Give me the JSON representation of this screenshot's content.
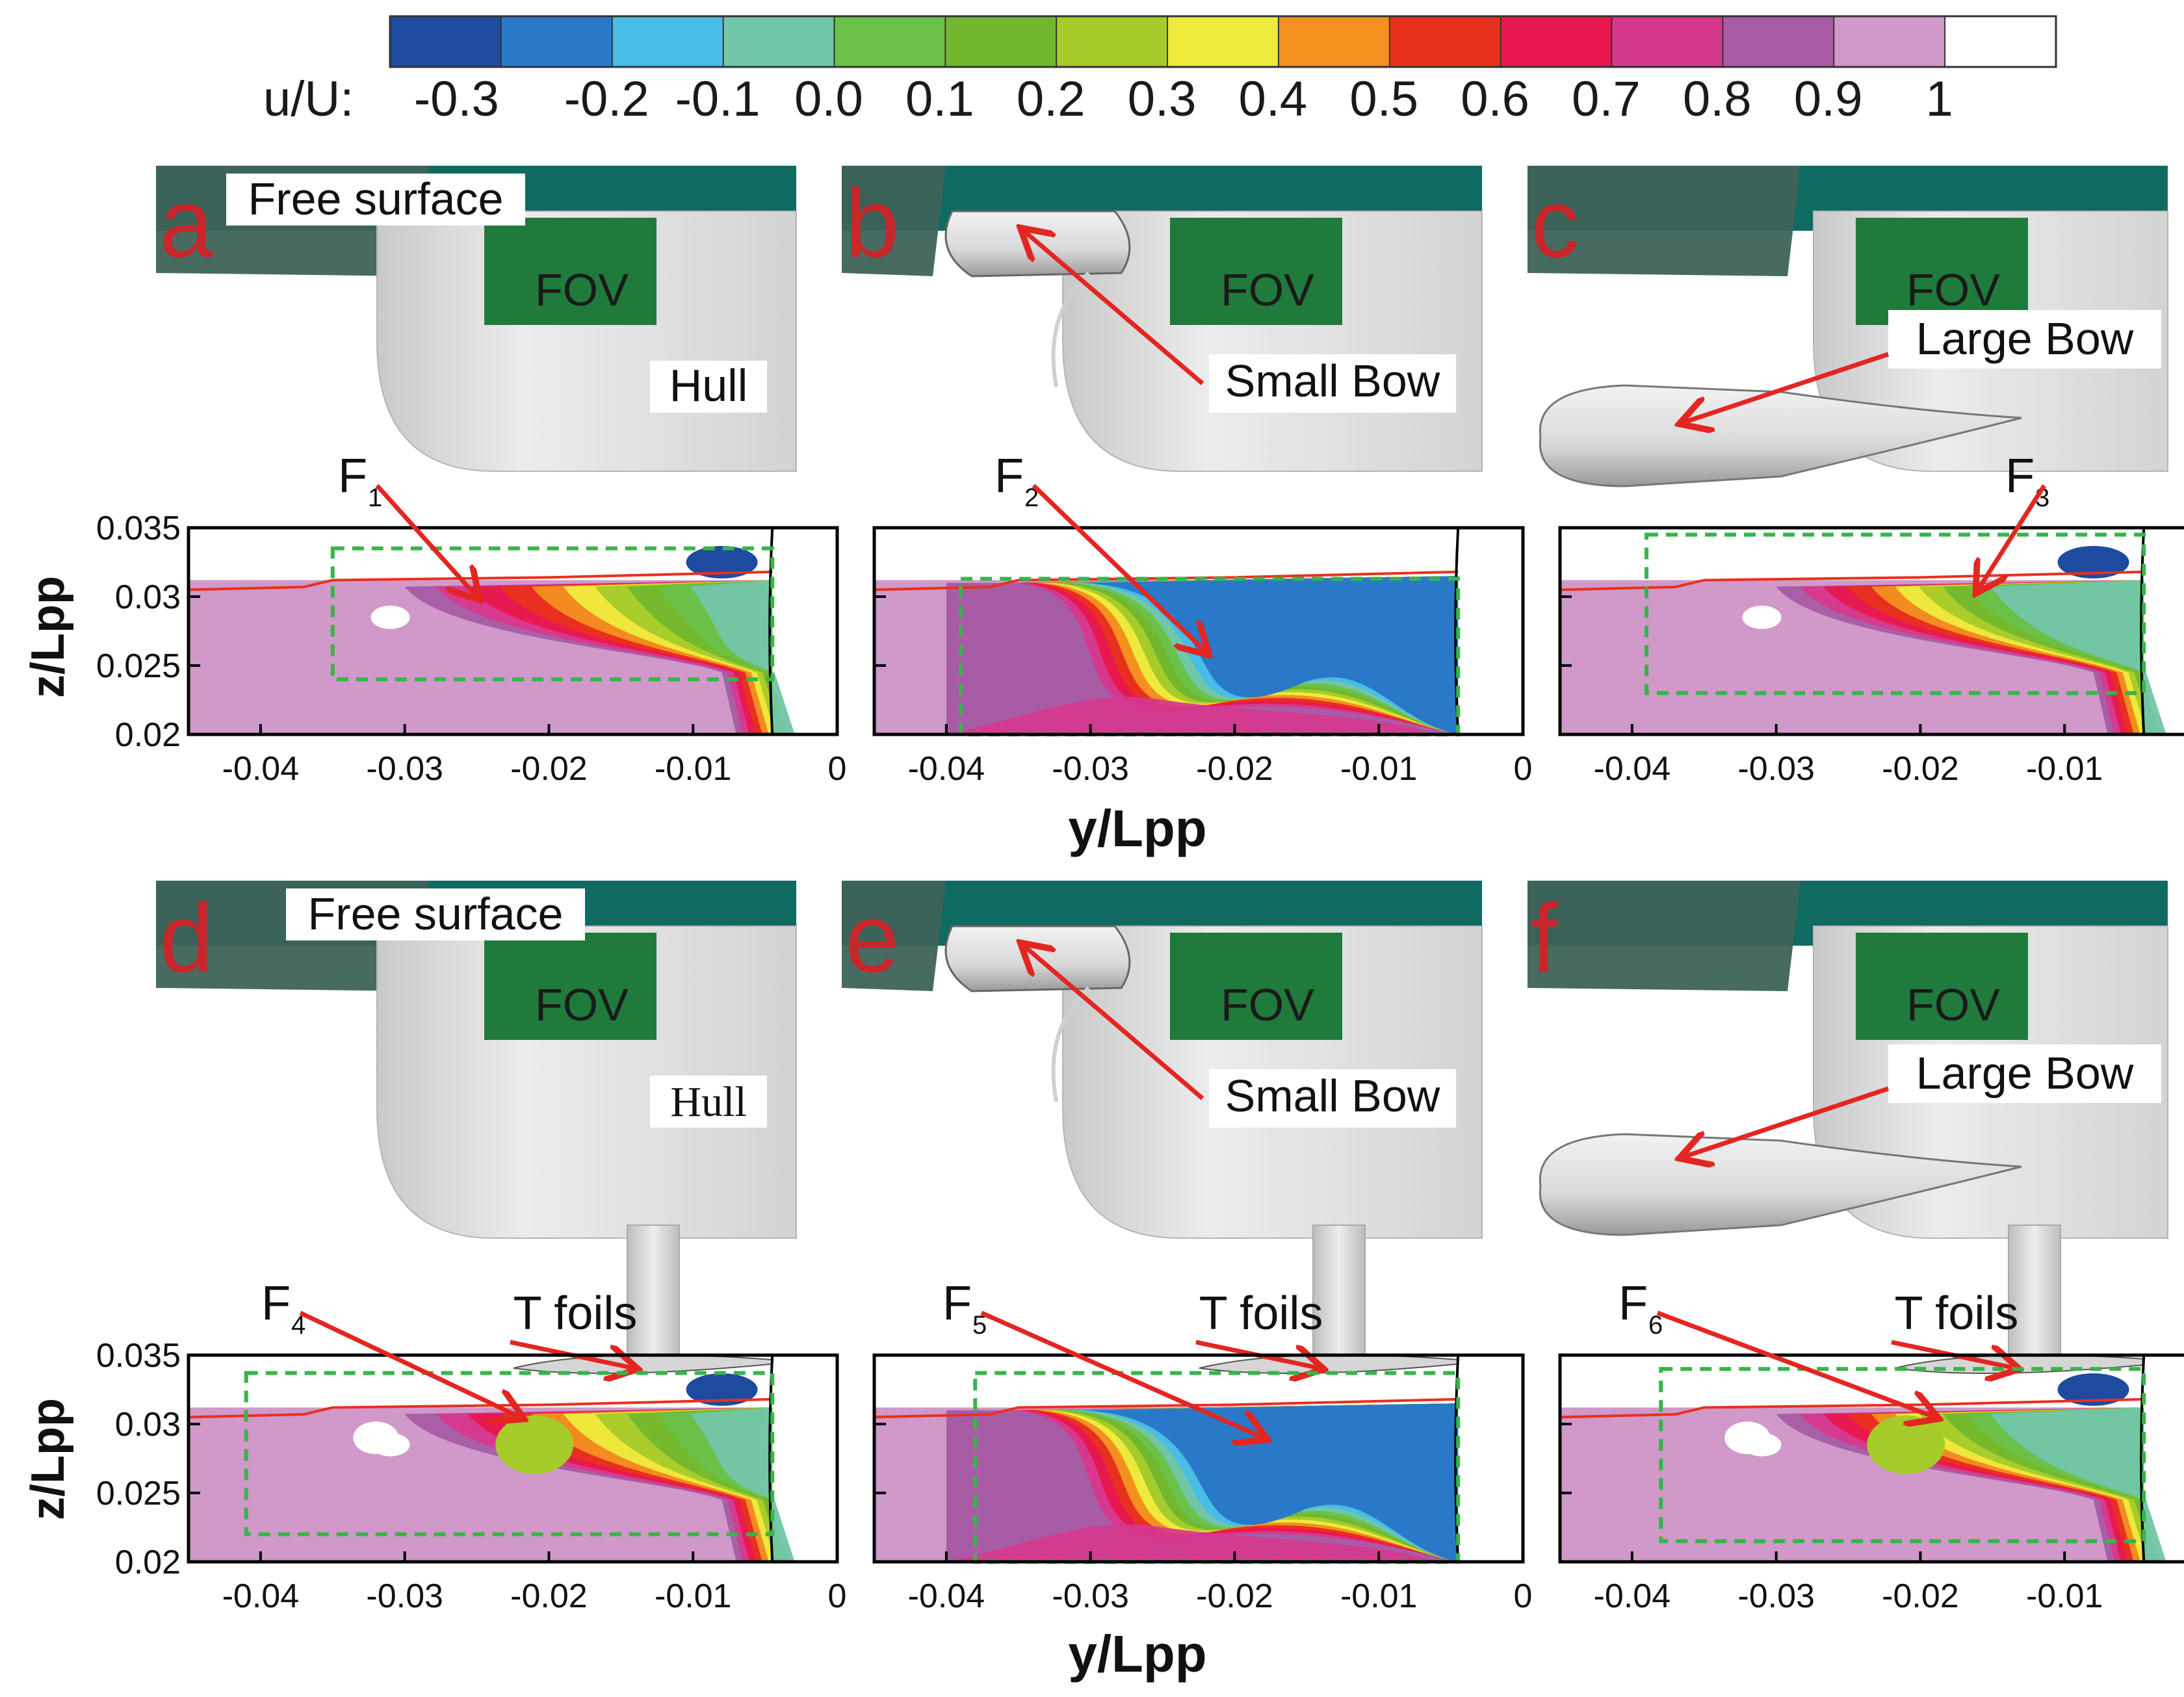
{
  "colorbar": {
    "prefix": "u/U:",
    "ticks": [
      "-0.3",
      "-0.2",
      "-0.1",
      "0.0",
      "0.1",
      "0.2",
      "0.3",
      "0.4",
      "0.5",
      "0.6",
      "0.7",
      "0.8",
      "0.9",
      "1"
    ],
    "colors": [
      "#1e4aa0",
      "#2a78c8",
      "#48bde6",
      "#72c6a8",
      "#6ac24a",
      "#72b82e",
      "#a5cc2a",
      "#eeea3c",
      "#f39020",
      "#e8301e",
      "#e8184e",
      "#d6388e",
      "#a85ca6",
      "#d099c9",
      "#ffffff"
    ]
  },
  "labels": {
    "free_surface": "Free surface",
    "fov": "FOV",
    "hull": "Hull",
    "small_bow": "Small Bow",
    "large_bow": "Large Bow",
    "t_foils": "T foils"
  },
  "colors": {
    "water": "#0f6a62",
    "water_dark": "#3e6358",
    "fov": "#1f7a3c",
    "hull": "#dcdcdc",
    "arrow": "#e32622",
    "panel_letter": "#c8262a",
    "dashed_box": "#38b449"
  },
  "panels": [
    {
      "letter": "a",
      "bow": "none",
      "foil": false,
      "feature": "F",
      "sub": "1",
      "hull_label": true,
      "free_surface_label": true
    },
    {
      "letter": "b",
      "bow": "small",
      "foil": false,
      "feature": "F",
      "sub": "2",
      "hull_label": false,
      "free_surface_label": false
    },
    {
      "letter": "c",
      "bow": "large",
      "foil": false,
      "feature": "F",
      "sub": "3",
      "hull_label": false,
      "free_surface_label": false
    },
    {
      "letter": "d",
      "bow": "none",
      "foil": true,
      "feature": "F",
      "sub": "4",
      "hull_label": true,
      "free_surface_label": true
    },
    {
      "letter": "e",
      "bow": "small",
      "foil": true,
      "feature": "F",
      "sub": "5",
      "hull_label": false,
      "free_surface_label": false
    },
    {
      "letter": "f",
      "bow": "large",
      "foil": true,
      "feature": "F",
      "sub": "6",
      "hull_label": false,
      "free_surface_label": false
    }
  ],
  "chart_data": {
    "type": "heatmap",
    "xlabel": "y/Lpp",
    "ylabel": "z/Lpp",
    "xlim": [
      -0.045,
      0.0
    ],
    "ylim": [
      0.02,
      0.035
    ],
    "xticks": [
      "-0.04",
      "-0.03",
      "-0.02",
      "-0.01",
      "0"
    ],
    "yticks": [
      "0.035",
      "0.03",
      "0.025",
      "0.02"
    ],
    "colorbar_variable": "u/U",
    "colorbar_range": [
      -0.3,
      1.0
    ]
  }
}
